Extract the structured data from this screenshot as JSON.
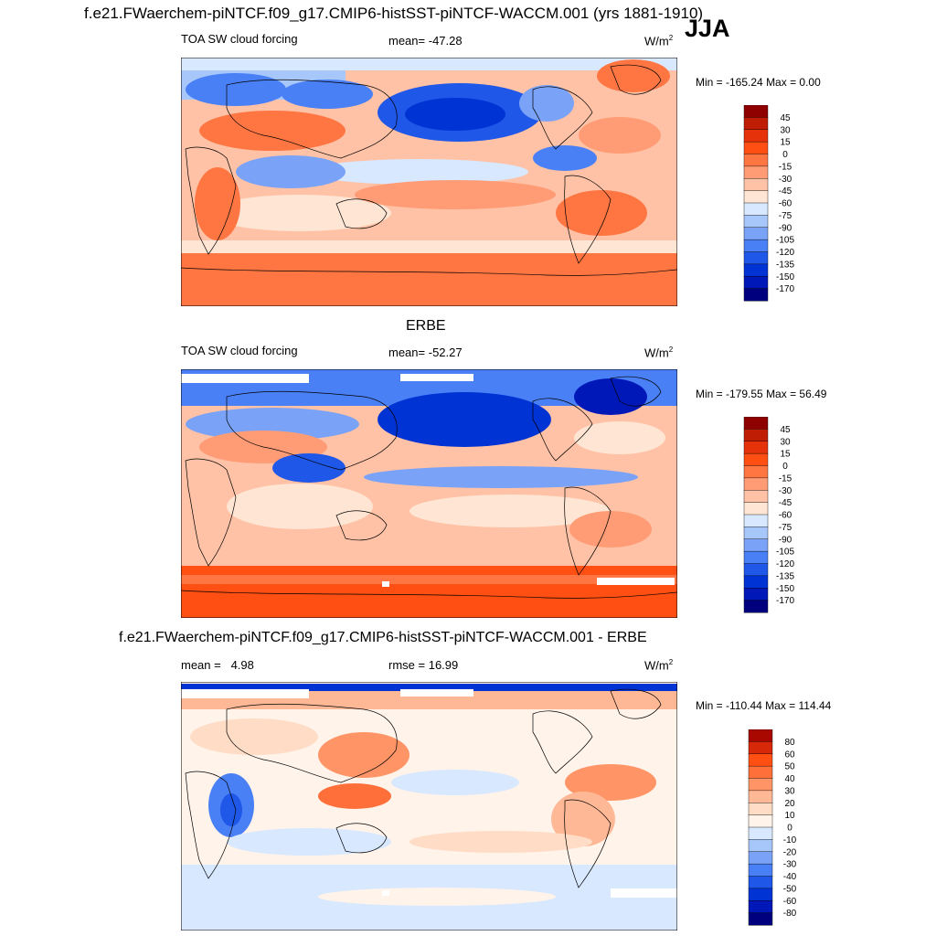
{
  "figure": {
    "title": "f.e21.FWaerchem-piNTCF.f09_g17.CMIP6-histSST-piNTCF-WACCM.001 (yrs 1881-1910)",
    "season": "JJA"
  },
  "colors": {
    "abs_scale": [
      "#00007f",
      "#0018b8",
      "#0033d4",
      "#1f57e8",
      "#4a80f5",
      "#7aa3f7",
      "#a7c7fb",
      "#d7e8ff",
      "#ffe5d3",
      "#ffc2a6",
      "#ff9c75",
      "#ff7643",
      "#ff4f12",
      "#e6320a",
      "#c01d05",
      "#8f0000"
    ],
    "diff_scale": [
      "#00007f",
      "#0018b8",
      "#0033d4",
      "#1f57e8",
      "#4a80f5",
      "#7aa3f7",
      "#a7c7fb",
      "#d7e8ff",
      "#fff3ea",
      "#ffdcc5",
      "#ffb896",
      "#ff9566",
      "#ff6f3a",
      "#ff4f12",
      "#d8280a",
      "#a80800",
      "#8f0000"
    ],
    "land_outline": "#000000"
  },
  "chart_data": [
    {
      "type": "heatmap",
      "panel_title": "",
      "field": "TOA SW cloud forcing",
      "stat_label": "mean=",
      "stat_value": "-47.28",
      "units_base": "W/m",
      "units_exp": "2",
      "min_label": "Min = -165.24",
      "max_label": "Max =   0.00",
      "min": -165.24,
      "max": 0.0,
      "mean": -47.28,
      "colorbar_labels": [
        "45",
        "30",
        "15",
        "0",
        "-15",
        "-30",
        "-45",
        "-60",
        "-75",
        "-90",
        "-105",
        "-120",
        "-135",
        "-150",
        "-170"
      ],
      "colorbar_levels": [
        45,
        30,
        15,
        0,
        -15,
        -30,
        -45,
        -60,
        -75,
        -90,
        -105,
        -120,
        -135,
        -150,
        -170
      ]
    },
    {
      "type": "heatmap",
      "panel_title": "ERBE",
      "field": "TOA SW cloud forcing",
      "stat_label": "mean=",
      "stat_value": "-52.27",
      "units_base": "W/m",
      "units_exp": "2",
      "min_label": "Min = -179.55",
      "max_label": "Max =  56.49",
      "min": -179.55,
      "max": 56.49,
      "mean": -52.27,
      "colorbar_labels": [
        "45",
        "30",
        "15",
        "0",
        "-15",
        "-30",
        "-45",
        "-60",
        "-75",
        "-90",
        "-105",
        "-120",
        "-135",
        "-150",
        "-170"
      ],
      "colorbar_levels": [
        45,
        30,
        15,
        0,
        -15,
        -30,
        -45,
        -60,
        -75,
        -90,
        -105,
        -120,
        -135,
        -150,
        -170
      ]
    },
    {
      "type": "heatmap",
      "panel_title": "f.e21.FWaerchem-piNTCF.f09_g17.CMIP6-histSST-piNTCF-WACCM.001 - ERBE",
      "field": "",
      "stat_label": "mean =",
      "stat_value": "4.98",
      "stat2_label": "rmse =",
      "stat2_value": "16.99",
      "units_base": "W/m",
      "units_exp": "2",
      "min_label": "Min = -110.44",
      "max_label": "Max = 114.44",
      "min": -110.44,
      "max": 114.44,
      "mean": 4.98,
      "rmse": 16.99,
      "colorbar_labels": [
        "80",
        "60",
        "50",
        "40",
        "30",
        "20",
        "10",
        "0",
        "-10",
        "-20",
        "-30",
        "-40",
        "-50",
        "-60",
        "-80"
      ],
      "colorbar_levels": [
        80,
        60,
        50,
        40,
        30,
        20,
        10,
        0,
        -10,
        -20,
        -30,
        -40,
        -50,
        -60,
        -80
      ]
    }
  ]
}
